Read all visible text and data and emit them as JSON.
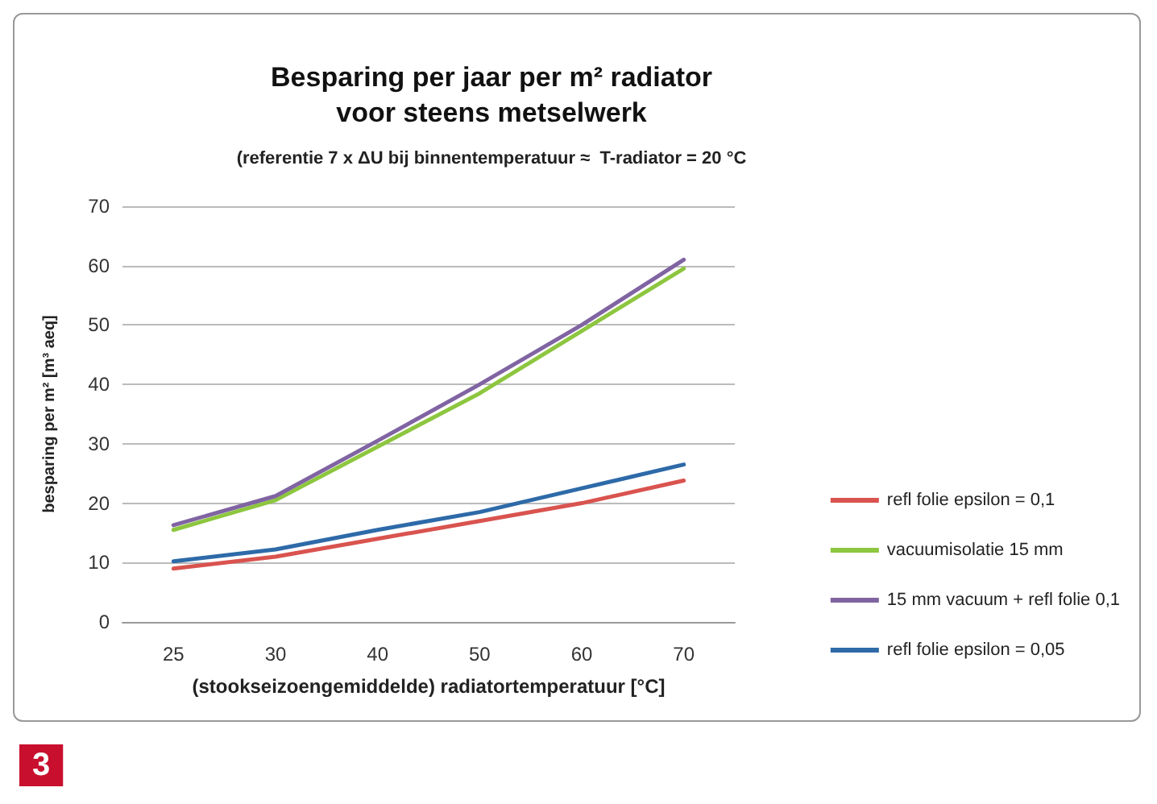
{
  "chart_data": {
    "type": "line",
    "title": "Besparing per jaar per m² radiator\nvoor steens metselwerk",
    "subtitle": "(referentie 7 x ΔU bij binnentemperatuur ≈  T-radiator = 20 °C",
    "xlabel": "(stookseizoengemiddelde) radiatortemperatuur [°C]",
    "ylabel": "besparing per m² [m³ aeq]",
    "categories": [
      "25",
      "30",
      "40",
      "50",
      "60",
      "70"
    ],
    "series": [
      {
        "name": "refl folie epsilon = 0,1",
        "color": "#d9534f",
        "values": [
          9,
          11,
          14,
          17,
          20,
          23.8
        ]
      },
      {
        "name": "vacuumisolatie 15 mm",
        "color": "#8dc63f",
        "values": [
          15.5,
          20.5,
          29.5,
          38.5,
          49,
          59.5
        ]
      },
      {
        "name": "15 mm vacuum + refl folie 0,1",
        "color": "#8064a2",
        "values": [
          16.3,
          21.2,
          30.5,
          40,
          50,
          61
        ]
      },
      {
        "name": "refl folie epsilon = 0,05",
        "color": "#2e6aa8",
        "values": [
          10.2,
          12.2,
          15.5,
          18.5,
          22.5,
          26.5
        ]
      }
    ],
    "ylim": [
      0,
      70
    ],
    "yticks": [
      0,
      10,
      20,
      30,
      40,
      50,
      60,
      70
    ],
    "grid": "y",
    "legend": "right",
    "marker": "none",
    "line_style": "solid",
    "annotations": [
      "3"
    ]
  }
}
